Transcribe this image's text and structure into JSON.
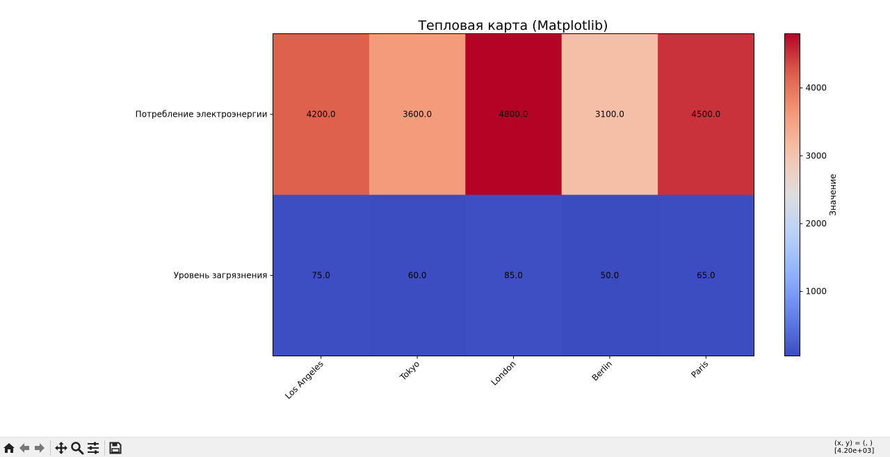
{
  "chart_data": {
    "type": "heatmap",
    "title": "Тепловая карта (Matplotlib)",
    "x_categories": [
      "Los Angeles",
      "Tokyo",
      "London",
      "Berlin",
      "Paris"
    ],
    "y_categories": [
      "Потребление электроэнергии",
      "Уровень загрязнения"
    ],
    "values": [
      [
        4200.0,
        3600.0,
        4800.0,
        3100.0,
        4500.0
      ],
      [
        75.0,
        60.0,
        85.0,
        50.0,
        65.0
      ]
    ],
    "cell_labels": [
      [
        "4200.0",
        "3600.0",
        "4800.0",
        "3100.0",
        "4500.0"
      ],
      [
        "75.0",
        "60.0",
        "85.0",
        "50.0",
        "65.0"
      ]
    ],
    "colormap": "coolwarm",
    "vmin": 50,
    "vmax": 4800,
    "colorbar": {
      "label": "Значение",
      "ticks": [
        1000,
        2000,
        3000,
        4000
      ],
      "tick_labels": [
        "1000",
        "2000",
        "3000",
        "4000"
      ]
    }
  },
  "toolbar": {
    "buttons": [
      {
        "name": "home-button",
        "icon": "home-icon"
      },
      {
        "name": "back-button",
        "icon": "arrow-left-icon"
      },
      {
        "name": "forward-button",
        "icon": "arrow-right-icon"
      },
      {
        "name": "pan-button",
        "icon": "move-icon"
      },
      {
        "name": "zoom-button",
        "icon": "magnifier-icon"
      },
      {
        "name": "configure-subplots-button",
        "icon": "sliders-icon"
      },
      {
        "name": "save-button",
        "icon": "floppy-disk-icon"
      }
    ],
    "coord_line1": "(x, y) = (, )",
    "coord_line2": "[4.20e+03]"
  }
}
